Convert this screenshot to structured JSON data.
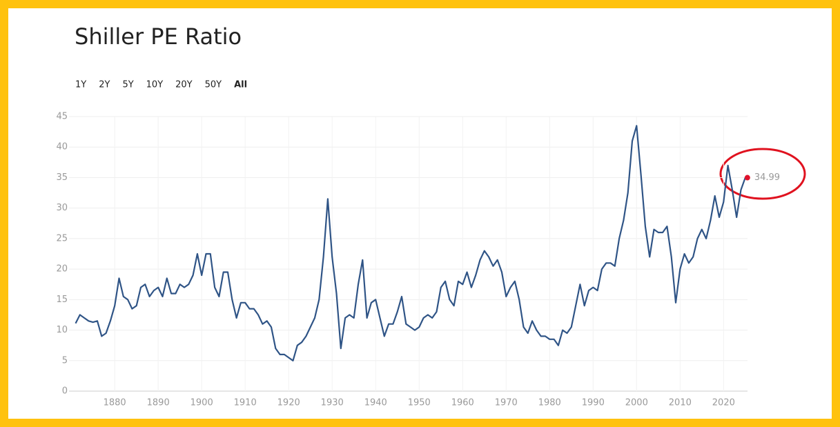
{
  "page": {
    "range_buttons": [
      "1Y",
      "2Y",
      "5Y",
      "10Y",
      "20Y",
      "50Y",
      "All"
    ],
    "active_range": 6
  },
  "chart_data": {
    "type": "line",
    "title": "Shiller PE Ratio",
    "color": "#2f5486",
    "marker_color": "#e0122b",
    "grid": true,
    "x": [
      1871,
      1872,
      1873,
      1874,
      1875,
      1876,
      1877,
      1878,
      1879,
      1880,
      1881,
      1882,
      1883,
      1884,
      1885,
      1886,
      1887,
      1888,
      1889,
      1890,
      1891,
      1892,
      1893,
      1894,
      1895,
      1896,
      1897,
      1898,
      1899,
      1900,
      1901,
      1902,
      1903,
      1904,
      1905,
      1906,
      1907,
      1908,
      1909,
      1910,
      1911,
      1912,
      1913,
      1914,
      1915,
      1916,
      1917,
      1918,
      1919,
      1920,
      1921,
      1922,
      1923,
      1924,
      1925,
      1926,
      1927,
      1928,
      1929,
      1930,
      1931,
      1932,
      1933,
      1934,
      1935,
      1936,
      1937,
      1938,
      1939,
      1940,
      1941,
      1942,
      1943,
      1944,
      1945,
      1946,
      1947,
      1948,
      1949,
      1950,
      1951,
      1952,
      1953,
      1954,
      1955,
      1956,
      1957,
      1958,
      1959,
      1960,
      1961,
      1962,
      1963,
      1964,
      1965,
      1966,
      1967,
      1968,
      1969,
      1970,
      1971,
      1972,
      1973,
      1974,
      1975,
      1976,
      1977,
      1978,
      1979,
      1980,
      1981,
      1982,
      1983,
      1984,
      1985,
      1986,
      1987,
      1988,
      1989,
      1990,
      1991,
      1992,
      1993,
      1994,
      1995,
      1996,
      1997,
      1998,
      1999,
      2000,
      2001,
      2002,
      2003,
      2004,
      2005,
      2006,
      2007,
      2008,
      2009,
      2010,
      2011,
      2012,
      2013,
      2014,
      2015,
      2016,
      2017,
      2018,
      2019,
      2020,
      2021,
      2022,
      2023,
      2024,
      2025
    ],
    "values": [
      11.1,
      12.5,
      12,
      11.5,
      11.3,
      11.5,
      9,
      9.5,
      11.5,
      14,
      18.5,
      15.5,
      15,
      13.5,
      14,
      17,
      17.5,
      15.5,
      16.5,
      17,
      15.5,
      18.5,
      16,
      16,
      17.5,
      17,
      17.5,
      19,
      22.5,
      19,
      22.5,
      22.5,
      17,
      15.5,
      19.5,
      19.5,
      15,
      12,
      14.5,
      14.5,
      13.5,
      13.5,
      12.5,
      11,
      11.5,
      10.5,
      7,
      6,
      6,
      5.5,
      5,
      7.5,
      8,
      9,
      10.5,
      12,
      15,
      22,
      31.5,
      22,
      16,
      7,
      12,
      12.5,
      12,
      17.5,
      21.5,
      12,
      14.5,
      15,
      12,
      9,
      11,
      11,
      13,
      15.5,
      11,
      10.5,
      10,
      10.5,
      12,
      12.5,
      12,
      13,
      17,
      18,
      15,
      14,
      18,
      17.5,
      19.5,
      17,
      19,
      21.5,
      23,
      22,
      20.5,
      21.5,
      19.5,
      15.5,
      17,
      18,
      15,
      10.5,
      9.5,
      11.5,
      10,
      9,
      9,
      8.5,
      8.5,
      7.5,
      10,
      9.5,
      10.5,
      14,
      17.5,
      14,
      16.5,
      17,
      16.5,
      20,
      21,
      21,
      20.5,
      25,
      28,
      32.5,
      41,
      43.5,
      35.5,
      27,
      22,
      26.5,
      26,
      26,
      27,
      22,
      14.5,
      20,
      22.5,
      21,
      22,
      25,
      26.5,
      25,
      28,
      32,
      28.5,
      31,
      37,
      33,
      28.5,
      33,
      34.99
    ],
    "xlim": [
      1869.5,
      2025.5
    ],
    "xticks": [
      1880,
      1890,
      1900,
      1910,
      1920,
      1930,
      1940,
      1950,
      1960,
      1970,
      1980,
      1990,
      2000,
      2010,
      2020
    ],
    "ylim": [
      0,
      45
    ],
    "yticks": [
      0,
      5,
      10,
      15,
      20,
      25,
      30,
      35,
      40,
      45
    ]
  }
}
